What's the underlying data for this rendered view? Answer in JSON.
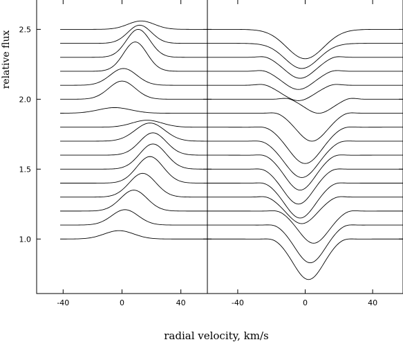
{
  "chart_data": [
    {
      "type": "line",
      "panel": "left",
      "line_kind": "emission",
      "x_range": [
        -58,
        58
      ],
      "y_range": [
        0.61,
        2.71
      ],
      "xticks": [
        -40,
        0,
        40
      ],
      "xticklabels": [
        "-40",
        "0",
        "40"
      ],
      "yticks": [
        1.0,
        1.5,
        2.0,
        2.5
      ],
      "yticklabels": [
        "1.0",
        "1.5",
        "2.0",
        "2.5"
      ],
      "ylabel": "relative flux",
      "grid": false,
      "velocity_span": [
        -42,
        58
      ],
      "profiles": [
        {
          "baseline": 1.0,
          "center": -2,
          "amplitude": 0.06,
          "width": 10
        },
        {
          "baseline": 1.1,
          "center": 2,
          "amplitude": 0.11,
          "width": 9
        },
        {
          "baseline": 1.2,
          "center": 8,
          "amplitude": 0.15,
          "width": 9
        },
        {
          "baseline": 1.3,
          "center": 14,
          "amplitude": 0.17,
          "width": 9
        },
        {
          "baseline": 1.4,
          "center": 19,
          "amplitude": 0.19,
          "width": 9
        },
        {
          "baseline": 1.5,
          "center": 21,
          "amplitude": 0.18,
          "width": 9
        },
        {
          "baseline": 1.6,
          "center": 21,
          "amplitude": 0.16,
          "width": 9
        },
        {
          "baseline": 1.7,
          "center": 19,
          "amplitude": 0.13,
          "width": 10
        },
        {
          "baseline": 1.8,
          "center": 17,
          "amplitude": 0.05,
          "width": 10
        },
        {
          "baseline": 1.9,
          "center": -5,
          "amplitude": 0.04,
          "width": 11
        },
        {
          "baseline": 2.0,
          "center": 0,
          "amplitude": 0.13,
          "width": 9
        },
        {
          "baseline": 2.1,
          "center": 1,
          "amplitude": 0.12,
          "width": 9
        },
        {
          "baseline": 2.2,
          "center": 9,
          "amplitude": 0.21,
          "width": 8
        },
        {
          "baseline": 2.3,
          "center": 11,
          "amplitude": 0.2,
          "width": 8
        },
        {
          "baseline": 2.4,
          "center": 12,
          "amplitude": 0.13,
          "width": 8
        },
        {
          "baseline": 2.5,
          "center": 13,
          "amplitude": 0.06,
          "width": 9
        }
      ]
    },
    {
      "type": "line",
      "panel": "right",
      "line_kind": "absorption",
      "x_range": [
        -58,
        58
      ],
      "y_range": [
        0.61,
        2.71
      ],
      "xticks": [
        -40,
        0,
        40
      ],
      "xticklabels": [
        "-40",
        "0",
        "40"
      ],
      "grid": false,
      "velocity_span": [
        -58,
        58
      ],
      "profiles": [
        {
          "baseline": 1.0,
          "center": 2,
          "amplitude": 0.29,
          "width": 9,
          "side_bumps": true
        },
        {
          "baseline": 1.1,
          "center": 3,
          "amplitude": 0.27,
          "width": 9,
          "side_bumps": true
        },
        {
          "baseline": 1.2,
          "center": 5,
          "amplitude": 0.23,
          "width": 9,
          "side_bumps": true
        },
        {
          "baseline": 1.3,
          "center": -2,
          "amplitude": 0.19,
          "width": 9,
          "side_bumps": true
        },
        {
          "baseline": 1.4,
          "center": -3,
          "amplitude": 0.25,
          "width": 9,
          "side_bumps": true
        },
        {
          "baseline": 1.5,
          "center": -4,
          "amplitude": 0.25,
          "width": 9,
          "side_bumps": true
        },
        {
          "baseline": 1.6,
          "center": -3,
          "amplitude": 0.25,
          "width": 9,
          "side_bumps": true
        },
        {
          "baseline": 1.7,
          "center": -2,
          "amplitude": 0.26,
          "width": 10,
          "side_bumps": true
        },
        {
          "baseline": 1.8,
          "center": 0,
          "amplitude": 0.26,
          "width": 10,
          "side_bumps": true
        },
        {
          "baseline": 1.9,
          "center": 4,
          "amplitude": 0.2,
          "width": 9,
          "side_bumps": true
        },
        {
          "baseline": 2.0,
          "center": 8,
          "amplitude": 0.1,
          "width": 8,
          "side_bumps": true
        },
        {
          "baseline": 2.1,
          "center": -4,
          "amplitude": 0.11,
          "width": 9,
          "side_bumps": true
        },
        {
          "baseline": 2.2,
          "center": -4,
          "amplitude": 0.13,
          "width": 9,
          "side_bumps": true
        },
        {
          "baseline": 2.3,
          "center": -3,
          "amplitude": 0.15,
          "width": 9,
          "side_bumps": true
        },
        {
          "baseline": 2.4,
          "center": -2,
          "amplitude": 0.18,
          "width": 10,
          "side_bumps": false
        },
        {
          "baseline": 2.5,
          "center": 0,
          "amplitude": 0.21,
          "width": 11,
          "side_bumps": false
        }
      ]
    }
  ],
  "labels": {
    "ylabel": "relative flux",
    "xlabel": "radial velocity, km/s"
  }
}
